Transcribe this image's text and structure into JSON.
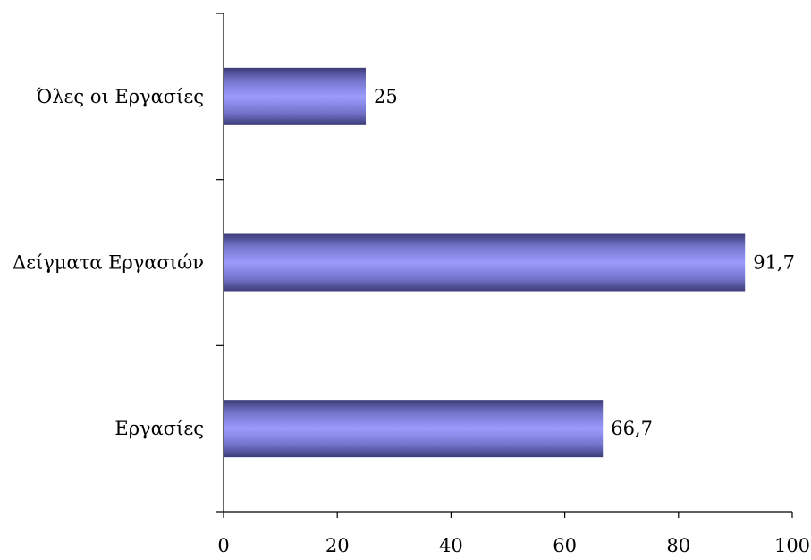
{
  "chart_data": {
    "type": "bar",
    "orientation": "horizontal",
    "categories": [
      "Όλες οι Εργασίες",
      "Δείγματα Εργασιών",
      "Εργασίες"
    ],
    "values": [
      25,
      91.7,
      66.7
    ],
    "data_labels": [
      "25",
      "91,7",
      "66,7"
    ],
    "x_ticks": [
      "0",
      "20",
      "40",
      "60",
      "80",
      "100"
    ],
    "xlim": [
      0,
      100
    ],
    "title": "",
    "xlabel": "",
    "ylabel": "",
    "grid": false,
    "legend": "none",
    "bar_color": "#8e8ef0",
    "bar_edge_color": "#3b3b7a"
  }
}
